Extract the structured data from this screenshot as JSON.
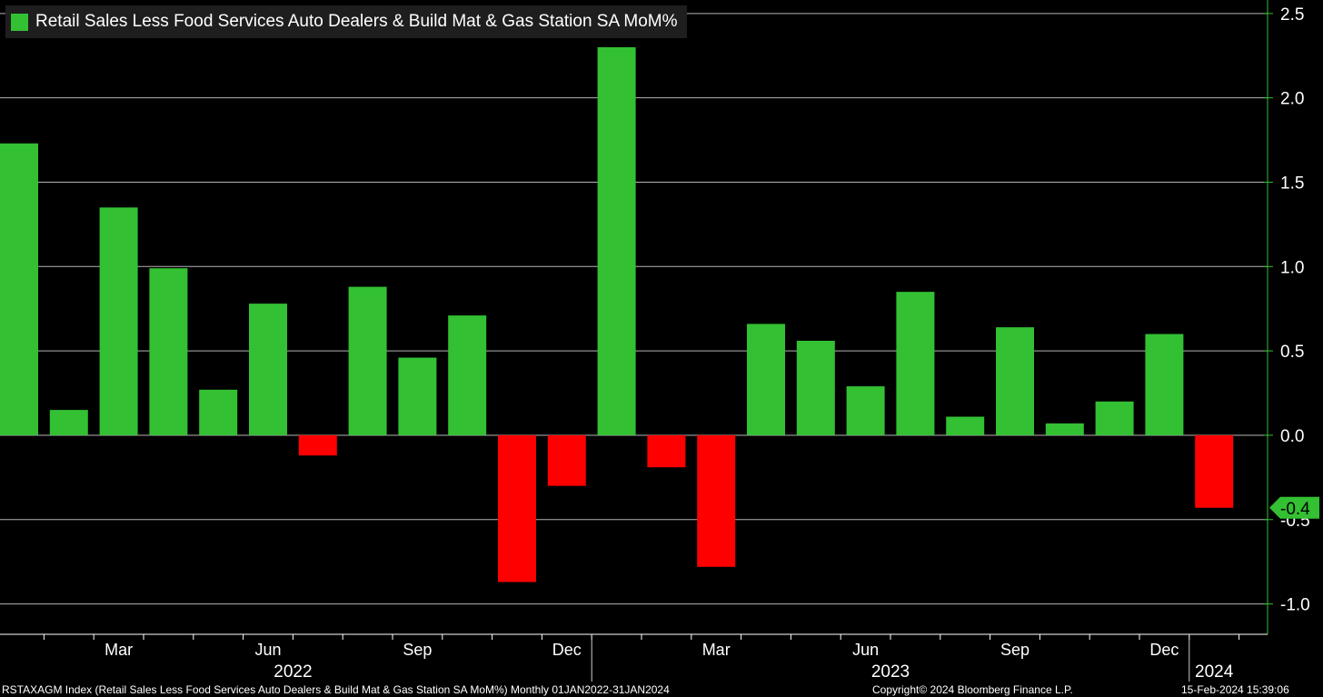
{
  "legend": {
    "label": "Retail Sales Less Food Services Auto Dealers & Build Mat & Gas Station SA MoM%",
    "color": "#33c033"
  },
  "colors": {
    "positive": "#33c033",
    "negative": "#ff0000",
    "axis": "#33c033",
    "grid": "#b4b4b4"
  },
  "chart_data": {
    "type": "bar",
    "title": "Retail Sales Less Food Services Auto Dealers & Build Mat & Gas Station SA MoM%",
    "categories": [
      "Jan 2022",
      "Feb 2022",
      "Mar 2022",
      "Apr 2022",
      "May 2022",
      "Jun 2022",
      "Jul 2022",
      "Aug 2022",
      "Sep 2022",
      "Oct 2022",
      "Nov 2022",
      "Dec 2022",
      "Jan 2023",
      "Feb 2023",
      "Mar 2023",
      "Apr 2023",
      "May 2023",
      "Jun 2023",
      "Jul 2023",
      "Aug 2023",
      "Sep 2023",
      "Oct 2023",
      "Nov 2023",
      "Dec 2023",
      "Jan 2024"
    ],
    "values": [
      1.73,
      0.15,
      1.35,
      0.99,
      0.27,
      0.78,
      -0.12,
      0.88,
      0.46,
      0.71,
      -0.87,
      -0.3,
      2.3,
      -0.19,
      -0.78,
      0.66,
      0.56,
      0.29,
      0.85,
      0.11,
      0.64,
      0.07,
      0.2,
      0.6,
      -0.43
    ],
    "ylim": [
      -1.18,
      2.58
    ],
    "yticks": [
      "-1.0",
      "-0.5",
      "0.0",
      "0.5",
      "1.0",
      "1.5",
      "2.0",
      "2.5"
    ],
    "ytick_values": [
      -1.0,
      -0.5,
      0.0,
      0.5,
      1.0,
      1.5,
      2.0,
      2.5
    ],
    "month_labels": [
      {
        "label": "Mar",
        "index": 2
      },
      {
        "label": "Jun",
        "index": 5
      },
      {
        "label": "Sep",
        "index": 8
      },
      {
        "label": "Dec",
        "index": 11
      },
      {
        "label": "Mar",
        "index": 14
      },
      {
        "label": "Jun",
        "index": 17
      },
      {
        "label": "Sep",
        "index": 20
      },
      {
        "label": "Dec",
        "index": 23
      }
    ],
    "year_labels": [
      {
        "label": "2022",
        "center_index": 5.5
      },
      {
        "label": "2023",
        "center_index": 17.5
      },
      {
        "label": "2024",
        "center_index": 24
      }
    ],
    "last_value_label": "-0.4",
    "last_value": -0.43,
    "grid": true,
    "legend_position": "top-left"
  },
  "footer": {
    "left": "RSTAXAGM Index (Retail Sales Less Food Services Auto Dealers & Build Mat & Gas Station SA MoM%)  Monthly 01JAN2022-31JAN2024",
    "middle": "Copyright© 2024 Bloomberg Finance L.P.",
    "right": "15-Feb-2024 15:39:06"
  }
}
